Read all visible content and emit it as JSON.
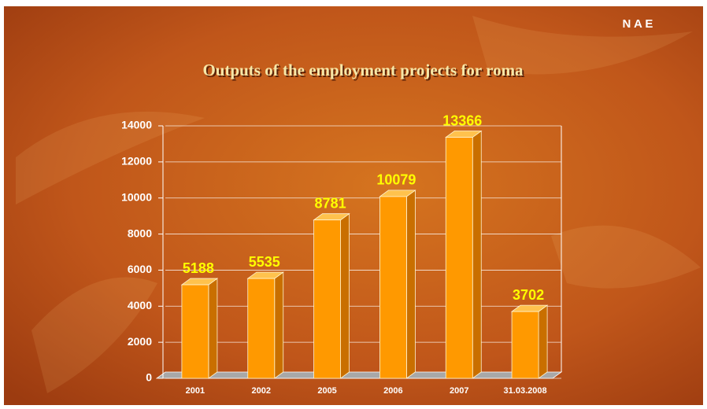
{
  "chart_data": {
    "type": "bar",
    "title": "Outputs of the employment projects for roma",
    "brand": "N A E",
    "categories": [
      "2001",
      "2002",
      "2005",
      "2006",
      "2007",
      "31.03.2008"
    ],
    "values": [
      5188,
      5535,
      8781,
      10079,
      13366,
      3702
    ],
    "color": "#ff9900",
    "ylim": [
      0,
      14000
    ],
    "yticks": [
      0,
      2000,
      4000,
      6000,
      8000,
      10000,
      12000,
      14000
    ],
    "grid": true
  }
}
